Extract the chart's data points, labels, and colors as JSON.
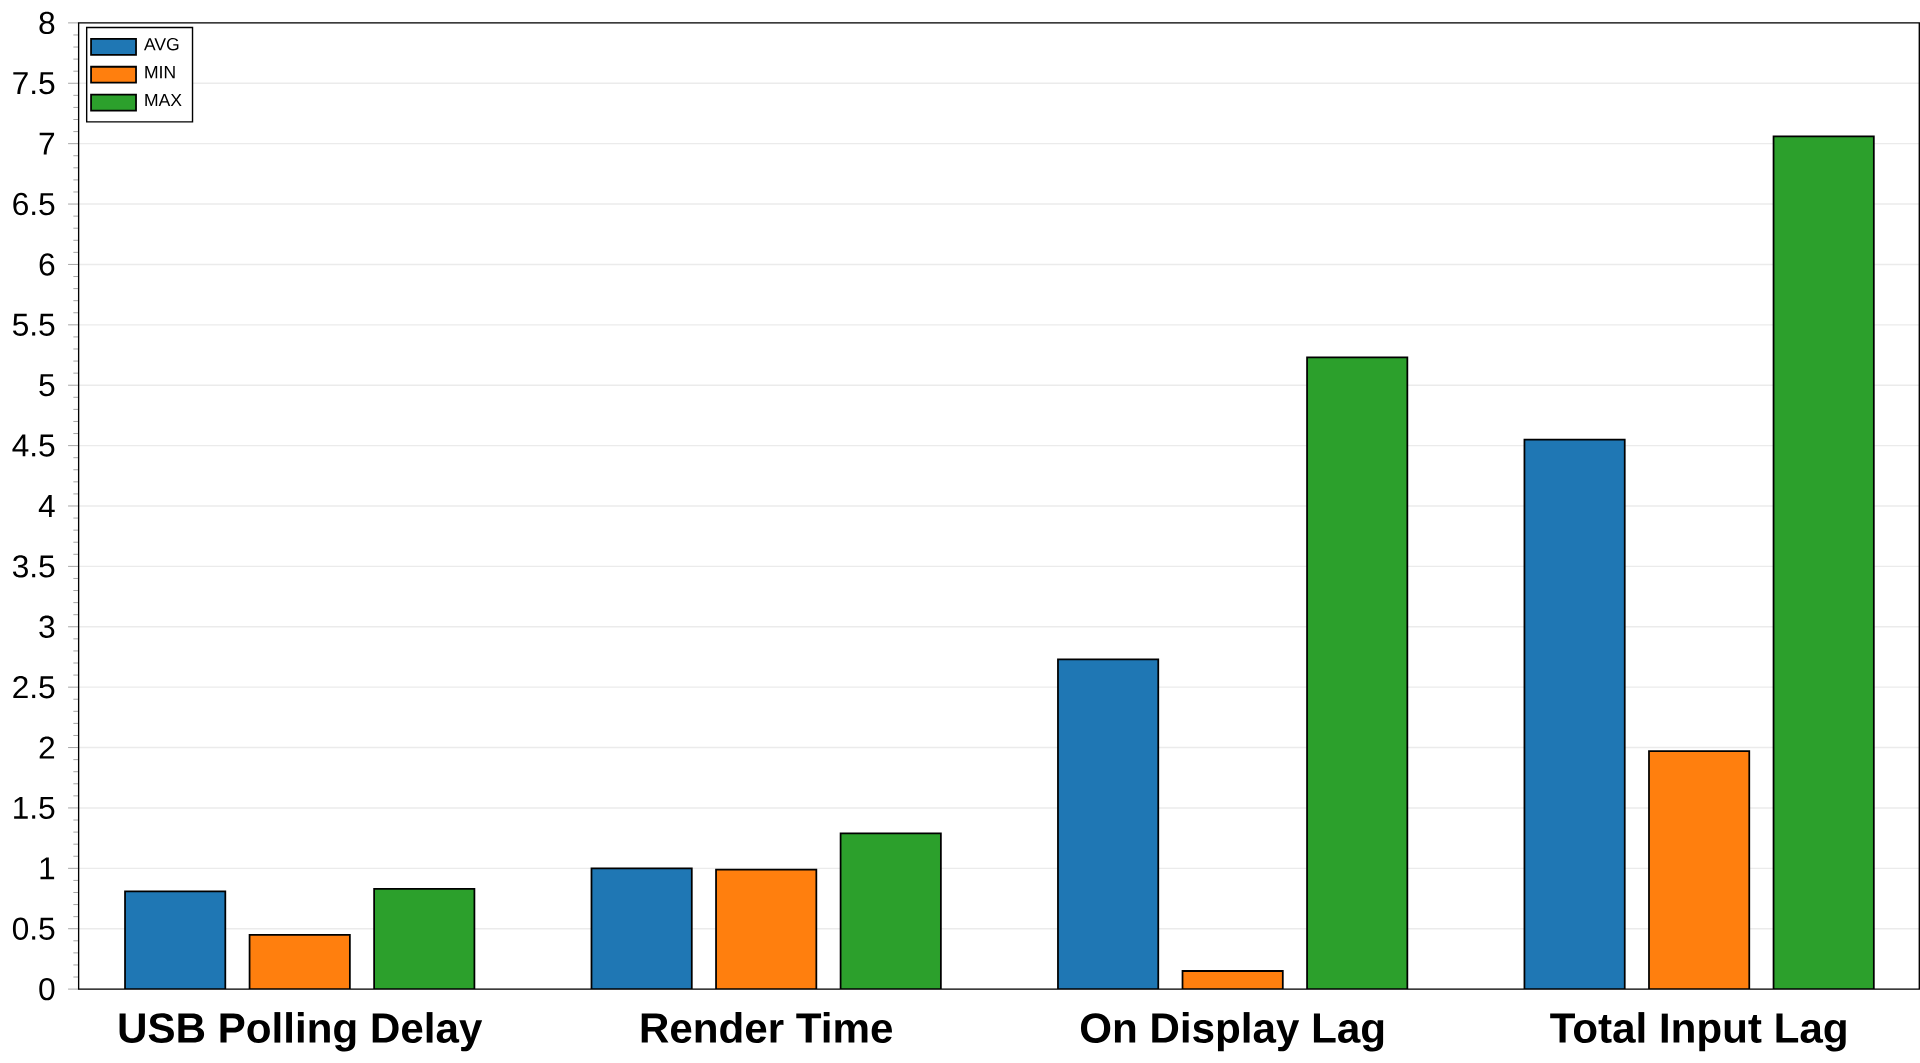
{
  "chart_data": {
    "type": "bar",
    "categories": [
      "USB Polling Delay",
      "Render Time",
      "On Display Lag",
      "Total Input Lag"
    ],
    "series": [
      {
        "name": "AVG",
        "color": "#1f77b4",
        "values": [
          0.81,
          1.0,
          2.73,
          4.55
        ]
      },
      {
        "name": "MIN",
        "color": "#ff7f0e",
        "values": [
          0.45,
          0.99,
          0.15,
          1.97
        ]
      },
      {
        "name": "MAX",
        "color": "#2ca02c",
        "values": [
          0.83,
          1.29,
          5.23,
          7.06
        ]
      }
    ],
    "ylim": [
      0,
      8
    ],
    "yticks": [
      0,
      0.5,
      1,
      1.5,
      2,
      2.5,
      3,
      3.5,
      4,
      4.5,
      5,
      5.5,
      6,
      6.5,
      7,
      7.5,
      8
    ],
    "grid": "y",
    "legend": "top left"
  }
}
